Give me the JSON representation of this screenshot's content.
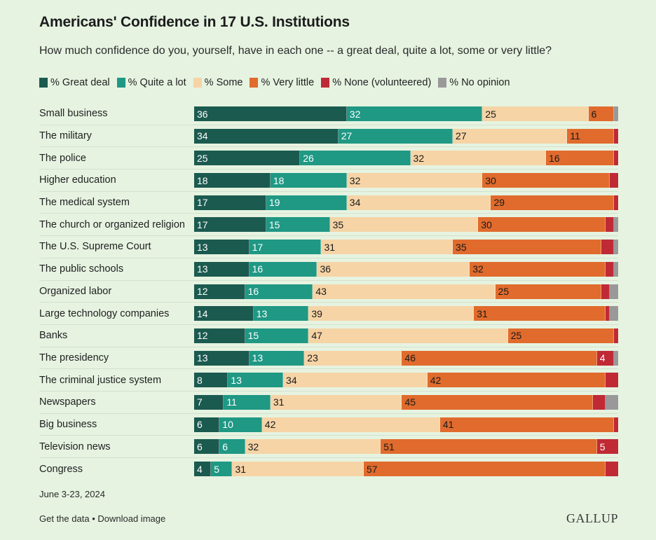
{
  "header": {
    "title": "Americans' Confidence in 17 U.S. Institutions",
    "subtitle": "How much confidence do you, yourself, have in each one -- a great deal, quite a lot, some or very little?"
  },
  "colors": {
    "great_deal": "#1b5a4f",
    "quite_a_lot": "#1f9884",
    "some": "#f6d4a6",
    "very_little": "#e06b2d",
    "none": "#c02a35",
    "no_opinion": "#999999"
  },
  "chart_data": {
    "type": "bar",
    "orientation": "horizontal",
    "stacked": true,
    "title": "Americans' Confidence in 17 U.S. Institutions",
    "subtitle": "How much confidence do you, yourself, have in each one -- a great deal, quite a lot, some or very little?",
    "legend_position": "top",
    "xlim": [
      0,
      100
    ],
    "categories": [
      "Small business",
      "The military",
      "The police",
      "Higher education",
      "The medical system",
      "The church or organized religion",
      "The U.S. Supreme Court",
      "The public schools",
      "Organized labor",
      "Large technology companies",
      "Banks",
      "The presidency",
      "The criminal justice system",
      "Newspapers",
      "Big business",
      "Television news",
      "Congress"
    ],
    "series": [
      {
        "name": "% Great deal",
        "key": "great_deal",
        "values": [
          36,
          34,
          25,
          18,
          17,
          17,
          13,
          13,
          12,
          14,
          12,
          13,
          8,
          7,
          6,
          6,
          4
        ]
      },
      {
        "name": "% Quite a lot",
        "key": "quite_a_lot",
        "values": [
          32,
          27,
          26,
          18,
          19,
          15,
          17,
          16,
          16,
          13,
          15,
          13,
          13,
          11,
          10,
          6,
          5
        ]
      },
      {
        "name": "% Some",
        "key": "some",
        "values": [
          25,
          27,
          32,
          32,
          34,
          35,
          31,
          36,
          43,
          39,
          47,
          23,
          34,
          31,
          42,
          32,
          31
        ]
      },
      {
        "name": "% Very little",
        "key": "very_little",
        "values": [
          6,
          11,
          16,
          30,
          29,
          30,
          35,
          32,
          25,
          31,
          25,
          46,
          42,
          45,
          41,
          51,
          57
        ]
      },
      {
        "name": "% None (volunteered)",
        "key": "none",
        "values": [
          0,
          1,
          1,
          2,
          1,
          2,
          3,
          2,
          2,
          1,
          1,
          4,
          3,
          3,
          1,
          5,
          3
        ]
      },
      {
        "name": "% No opinion",
        "key": "no_opinion",
        "values": [
          1,
          0,
          0,
          0,
          0,
          1,
          1,
          1,
          2,
          2,
          0,
          1,
          0,
          3,
          0,
          0,
          0
        ]
      }
    ],
    "labels_visible": [
      [
        "36",
        "32",
        "25",
        "6",
        "",
        ""
      ],
      [
        "34",
        "27",
        "27",
        "11",
        "",
        ""
      ],
      [
        "25",
        "26",
        "32",
        "16",
        "",
        ""
      ],
      [
        "18",
        "18",
        "32",
        "30",
        "",
        ""
      ],
      [
        "17",
        "19",
        "34",
        "29",
        "",
        ""
      ],
      [
        "17",
        "15",
        "35",
        "30",
        "",
        ""
      ],
      [
        "13",
        "17",
        "31",
        "35",
        "",
        ""
      ],
      [
        "13",
        "16",
        "36",
        "32",
        "",
        ""
      ],
      [
        "12",
        "16",
        "43",
        "25",
        "",
        ""
      ],
      [
        "14",
        "13",
        "39",
        "31",
        "",
        ""
      ],
      [
        "12",
        "15",
        "47",
        "25",
        "",
        ""
      ],
      [
        "13",
        "13",
        "23",
        "46",
        "4",
        ""
      ],
      [
        "8",
        "13",
        "34",
        "42",
        "",
        ""
      ],
      [
        "7",
        "11",
        "31",
        "45",
        "",
        ""
      ],
      [
        "6",
        "10",
        "42",
        "41",
        "",
        ""
      ],
      [
        "6",
        "6",
        "32",
        "51",
        "5",
        ""
      ],
      [
        "4",
        "5",
        "31",
        "57",
        "",
        ""
      ]
    ]
  },
  "footer": {
    "date": "June 3-23, 2024",
    "get_data": "Get the data",
    "separator": "•",
    "download": "Download image",
    "brand": "GALLUP"
  }
}
